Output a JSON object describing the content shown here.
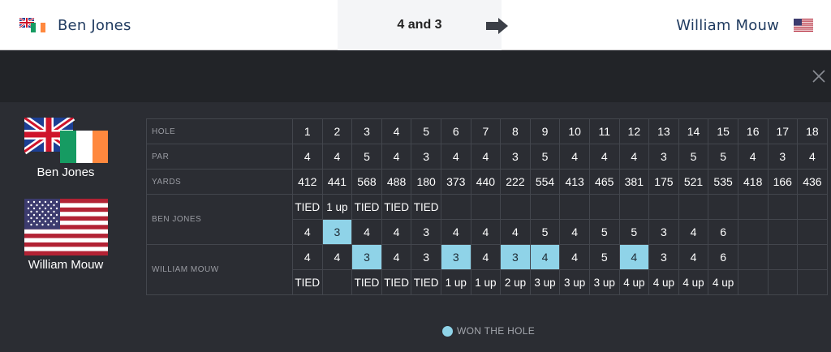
{
  "header": {
    "player1_name": "Ben Jones",
    "player2_name": "William Mouw",
    "result": "4 and 3",
    "arrow_icon": "arrow-right-icon"
  },
  "players": {
    "player1_label": "Ben Jones",
    "player2_label": "William Mouw",
    "player1_flags": [
      "uk-flag-icon",
      "ireland-flag-icon"
    ],
    "player2_flags": [
      "usa-flag-icon"
    ]
  },
  "scorecard": {
    "labels": {
      "hole": "HOLE",
      "par": "PAR",
      "yards": "YARDS",
      "player1": "BEN JONES",
      "player2": "WILLIAM MOUW"
    },
    "holes": [
      "1",
      "2",
      "3",
      "4",
      "5",
      "6",
      "7",
      "8",
      "9",
      "10",
      "11",
      "12",
      "13",
      "14",
      "15",
      "16",
      "17",
      "18"
    ],
    "par": [
      "4",
      "4",
      "5",
      "4",
      "3",
      "4",
      "4",
      "3",
      "5",
      "4",
      "4",
      "4",
      "3",
      "5",
      "5",
      "4",
      "3",
      "4"
    ],
    "yards": [
      "412",
      "441",
      "568",
      "488",
      "180",
      "373",
      "440",
      "222",
      "554",
      "413",
      "465",
      "381",
      "175",
      "521",
      "535",
      "418",
      "166",
      "436"
    ],
    "player1_status": [
      "TIED",
      "1 up",
      "TIED",
      "TIED",
      "TIED",
      "",
      "",
      "",
      "",
      "",
      "",
      "",
      "",
      "",
      "",
      "",
      "",
      ""
    ],
    "player1_scores": [
      "4",
      "3",
      "4",
      "4",
      "3",
      "4",
      "4",
      "4",
      "5",
      "4",
      "5",
      "5",
      "3",
      "4",
      "6",
      "",
      "",
      ""
    ],
    "player1_won": [
      false,
      true,
      false,
      false,
      false,
      false,
      false,
      false,
      false,
      false,
      false,
      false,
      false,
      false,
      false,
      false,
      false,
      false
    ],
    "player2_scores": [
      "4",
      "4",
      "3",
      "4",
      "3",
      "3",
      "4",
      "3",
      "4",
      "4",
      "5",
      "4",
      "3",
      "4",
      "6",
      "",
      "",
      ""
    ],
    "player2_won": [
      false,
      false,
      true,
      false,
      false,
      true,
      false,
      true,
      true,
      false,
      false,
      true,
      false,
      false,
      false,
      false,
      false,
      false
    ],
    "player2_status": [
      "TIED",
      "",
      "TIED",
      "TIED",
      "TIED",
      "1 up",
      "1 up",
      "2 up",
      "3 up",
      "3 up",
      "3 up",
      "4 up",
      "4 up",
      "4 up",
      "4 up",
      "",
      "",
      ""
    ]
  },
  "legend": {
    "text": "WON THE HOLE",
    "color": "#8fd3e8"
  },
  "colors": {
    "win_highlight": "#8fd3e8",
    "dark_bg": "#2b2d33",
    "name_blue": "#1f3a5f"
  }
}
